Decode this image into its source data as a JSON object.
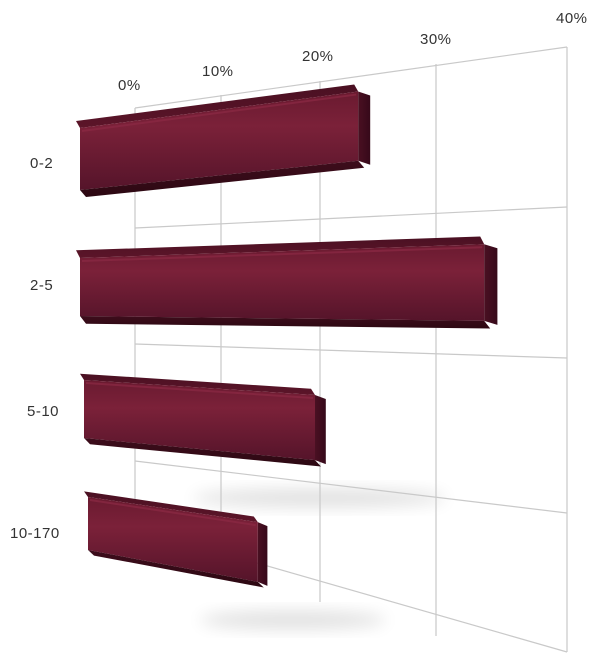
{
  "chart_data": {
    "type": "bar",
    "orientation": "horizontal",
    "style": "3d-perspective",
    "categories": [
      "0-2",
      "2-5",
      "5-10",
      "10-170"
    ],
    "values": [
      24,
      34,
      20,
      16
    ],
    "x_unit": "%",
    "xlim": [
      0,
      40
    ],
    "x_ticks": [
      0,
      10,
      20,
      30,
      40
    ],
    "x_tick_labels": [
      "0%",
      "10%",
      "20%",
      "30%",
      "40%"
    ],
    "title": "",
    "xlabel": "",
    "ylabel": "",
    "grid": true,
    "legend": "none",
    "bar_color": "#6e1a31"
  }
}
